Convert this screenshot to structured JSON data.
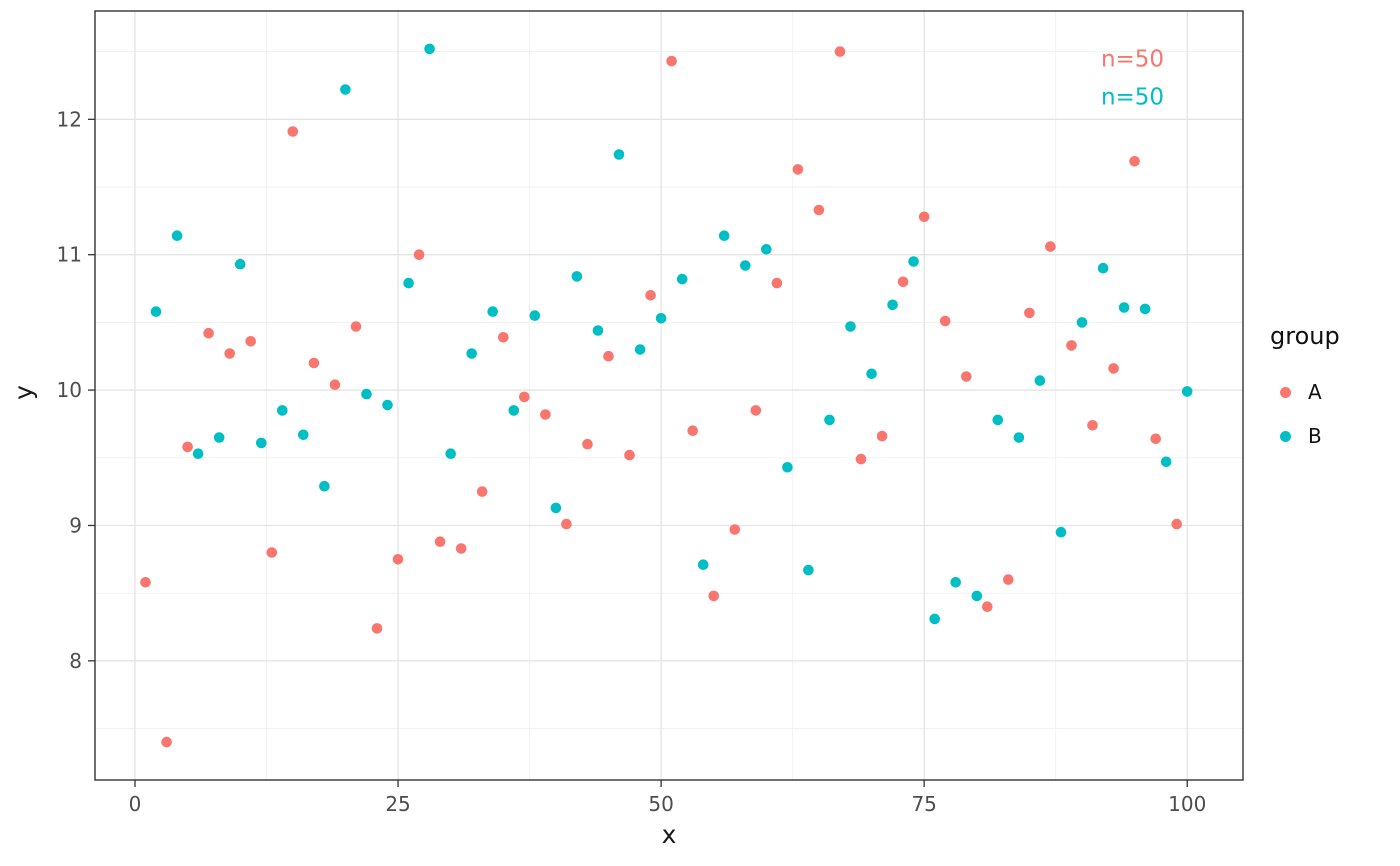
{
  "chart_data": {
    "type": "scatter",
    "title": "",
    "xlabel": "x",
    "ylabel": "y",
    "xlim": [
      -3.8,
      105.3
    ],
    "ylim": [
      7.12,
      12.8
    ],
    "x_ticks": [
      0,
      25,
      50,
      75,
      100
    ],
    "y_ticks": [
      8,
      9,
      10,
      11,
      12
    ],
    "x_minor": [
      12.5,
      37.5,
      62.5,
      87.5
    ],
    "y_minor": [
      7.5,
      8.5,
      9.5,
      10.5,
      11.5,
      12.5
    ],
    "grid": true,
    "panel_bg": "#FFFFFF",
    "grid_major_color": "#E4E4E4",
    "grid_minor_color": "#F1F1F1",
    "border_color": "#333333",
    "tick_color": "#333333",
    "tick_label_color": "#4D4D4D",
    "point_radius": 5.3,
    "legend": {
      "title": "group",
      "position": "right",
      "entries": [
        {
          "label": "A",
          "color": "#F8766D"
        },
        {
          "label": "B",
          "color": "#00BFC4"
        }
      ]
    },
    "annotations": [
      {
        "text": "n=50",
        "x": 94.8,
        "y": 12.45,
        "color": "#F8766D"
      },
      {
        "text": "n=50",
        "x": 94.8,
        "y": 12.17,
        "color": "#00BFC4"
      }
    ],
    "series": [
      {
        "name": "A",
        "color": "#F8766D",
        "points": [
          [
            1,
            8.58
          ],
          [
            3,
            7.4
          ],
          [
            5,
            9.58
          ],
          [
            7,
            10.42
          ],
          [
            9,
            10.27
          ],
          [
            11,
            10.36
          ],
          [
            13,
            8.8
          ],
          [
            15,
            11.91
          ],
          [
            17,
            10.2
          ],
          [
            19,
            10.04
          ],
          [
            21,
            10.47
          ],
          [
            23,
            8.24
          ],
          [
            25,
            8.75
          ],
          [
            27,
            11.0
          ],
          [
            29,
            8.88
          ],
          [
            31,
            8.83
          ],
          [
            33,
            9.25
          ],
          [
            35,
            10.39
          ],
          [
            37,
            9.95
          ],
          [
            39,
            9.82
          ],
          [
            41,
            9.01
          ],
          [
            43,
            9.6
          ],
          [
            45,
            10.25
          ],
          [
            47,
            9.52
          ],
          [
            49,
            10.7
          ],
          [
            51,
            12.43
          ],
          [
            53,
            9.7
          ],
          [
            55,
            8.48
          ],
          [
            57,
            8.97
          ],
          [
            59,
            9.85
          ],
          [
            61,
            10.79
          ],
          [
            63,
            11.63
          ],
          [
            65,
            11.33
          ],
          [
            67,
            12.5
          ],
          [
            69,
            9.49
          ],
          [
            71,
            9.66
          ],
          [
            73,
            10.8
          ],
          [
            75,
            11.28
          ],
          [
            77,
            10.51
          ],
          [
            79,
            10.1
          ],
          [
            81,
            8.4
          ],
          [
            83,
            8.6
          ],
          [
            85,
            10.57
          ],
          [
            87,
            11.06
          ],
          [
            89,
            10.33
          ],
          [
            91,
            9.74
          ],
          [
            93,
            10.16
          ],
          [
            95,
            11.69
          ],
          [
            97,
            9.64
          ],
          [
            99,
            9.01
          ]
        ]
      },
      {
        "name": "B",
        "color": "#00BFC4",
        "points": [
          [
            2,
            10.58
          ],
          [
            4,
            11.14
          ],
          [
            6,
            9.53
          ],
          [
            8,
            9.65
          ],
          [
            10,
            10.93
          ],
          [
            12,
            9.61
          ],
          [
            14,
            9.85
          ],
          [
            16,
            9.67
          ],
          [
            18,
            9.29
          ],
          [
            20,
            12.22
          ],
          [
            22,
            9.97
          ],
          [
            24,
            9.89
          ],
          [
            26,
            10.79
          ],
          [
            28,
            12.52
          ],
          [
            30,
            9.53
          ],
          [
            32,
            10.27
          ],
          [
            34,
            10.58
          ],
          [
            36,
            9.85
          ],
          [
            38,
            10.55
          ],
          [
            40,
            9.13
          ],
          [
            42,
            10.84
          ],
          [
            44,
            10.44
          ],
          [
            46,
            11.74
          ],
          [
            48,
            10.3
          ],
          [
            50,
            10.53
          ],
          [
            52,
            10.82
          ],
          [
            54,
            8.71
          ],
          [
            56,
            11.14
          ],
          [
            58,
            10.92
          ],
          [
            60,
            11.04
          ],
          [
            62,
            9.43
          ],
          [
            64,
            8.67
          ],
          [
            66,
            9.78
          ],
          [
            68,
            10.47
          ],
          [
            70,
            10.12
          ],
          [
            72,
            10.63
          ],
          [
            74,
            10.95
          ],
          [
            76,
            8.31
          ],
          [
            78,
            8.58
          ],
          [
            80,
            8.48
          ],
          [
            82,
            9.78
          ],
          [
            84,
            9.65
          ],
          [
            86,
            10.07
          ],
          [
            88,
            8.95
          ],
          [
            90,
            10.5
          ],
          [
            92,
            10.9
          ],
          [
            94,
            10.61
          ],
          [
            96,
            10.6
          ],
          [
            98,
            9.47
          ],
          [
            100,
            9.99
          ]
        ]
      }
    ]
  }
}
